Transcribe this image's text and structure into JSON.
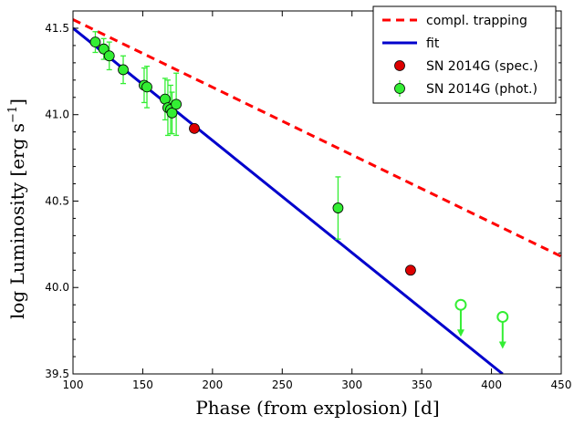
{
  "chart_data": {
    "type": "scatter",
    "xlabel": "Phase (from explosion) [d]",
    "ylabel": "log Luminosity [erg s",
    "ylabel_sup": "−1",
    "ylabel_close": "]",
    "xlim": [
      100,
      450
    ],
    "ylim": [
      39.5,
      41.6
    ],
    "x_ticks": [
      100,
      150,
      200,
      250,
      300,
      350,
      400,
      450
    ],
    "y_ticks": [
      39.5,
      40.0,
      40.5,
      41.0,
      41.5
    ],
    "x_tick_labels": [
      "100",
      "150",
      "200",
      "250",
      "300",
      "350",
      "400",
      "450"
    ],
    "y_tick_labels": [
      "39.5",
      "40.0",
      "40.5",
      "41.0",
      "41.5"
    ],
    "grid": false,
    "legend_position": "top-right",
    "series": [
      {
        "name": "compl. trapping",
        "kind": "dashed-line",
        "color": "#ff0000",
        "x": [
          100,
          450
        ],
        "y": [
          41.55,
          40.18
        ]
      },
      {
        "name": "fit",
        "kind": "line",
        "color": "#0000cc",
        "x": [
          100,
          408
        ],
        "y": [
          41.5,
          39.5
        ]
      },
      {
        "name": "SN 2014G (spec.)",
        "kind": "points",
        "color": "#dd0000",
        "x": [
          187,
          342
        ],
        "y": [
          40.92,
          40.1
        ]
      },
      {
        "name": "SN 2014G (phot.)",
        "kind": "points-errorbars",
        "color": "#33ee33",
        "x": [
          116,
          122,
          126,
          136,
          151,
          153,
          166,
          168,
          170,
          171,
          174,
          290
        ],
        "y": [
          41.42,
          41.38,
          41.34,
          41.26,
          41.17,
          41.16,
          41.09,
          41.04,
          41.03,
          41.01,
          41.06,
          40.46
        ],
        "yerr": [
          0.06,
          0.06,
          0.08,
          0.08,
          0.1,
          0.12,
          0.12,
          0.16,
          0.14,
          0.12,
          0.18,
          0.18
        ]
      },
      {
        "name": "upper limits",
        "kind": "upper-limits",
        "color": "#33ee33",
        "x": [
          378,
          408
        ],
        "y": [
          39.9,
          39.83
        ]
      }
    ]
  }
}
